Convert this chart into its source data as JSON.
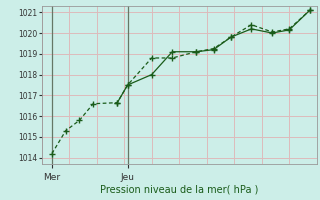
{
  "title": "Pression niveau de la mer( hPa )",
  "bg_color": "#cceee8",
  "grid_color": "#ddbbbb",
  "line_color": "#1a5c1a",
  "vline_color": "#667766",
  "ylim": [
    1013.7,
    1021.3
  ],
  "yticks": [
    1014,
    1015,
    1016,
    1017,
    1018,
    1019,
    1020,
    1021
  ],
  "xlim": [
    0,
    8.0
  ],
  "xtick_labels": [
    "Mer",
    "Jeu"
  ],
  "xtick_positions": [
    0.3,
    2.5
  ],
  "vline_x": [
    0.3,
    2.5
  ],
  "series1_x": [
    0.3,
    0.7,
    1.1,
    1.5,
    2.2,
    2.5,
    3.2,
    3.8,
    4.5,
    5.0,
    5.5,
    6.1,
    6.7,
    7.2,
    7.8
  ],
  "series1_y": [
    1014.2,
    1015.3,
    1015.8,
    1016.6,
    1016.65,
    1017.5,
    1018.8,
    1018.8,
    1019.1,
    1019.25,
    1019.8,
    1020.4,
    1020.05,
    1020.2,
    1021.1
  ],
  "series2_x": [
    2.2,
    2.5,
    3.2,
    3.8,
    4.5,
    5.0,
    5.5,
    6.1,
    6.7,
    7.2,
    7.8
  ],
  "series2_y": [
    1016.65,
    1017.5,
    1018.0,
    1019.1,
    1019.1,
    1019.2,
    1019.8,
    1020.2,
    1020.0,
    1020.15,
    1021.1
  ]
}
